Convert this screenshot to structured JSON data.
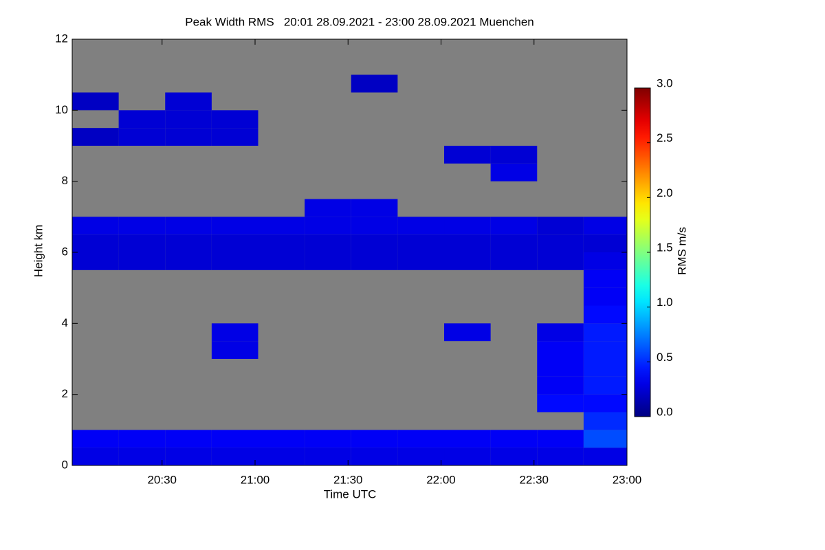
{
  "chart_data": {
    "type": "heatmap",
    "title": "Peak Width RMS   20:01 28.09.2021 - 23:00 28.09.2021 Muenchen",
    "x_label": "Time UTC",
    "y_label": "Height km",
    "colorbar_label": "RMS m/s",
    "xlim": [
      "20:01",
      "23:00"
    ],
    "xticks": [
      "20:30",
      "21:00",
      "21:30",
      "22:00",
      "22:30",
      "23:00"
    ],
    "ylim": [
      0,
      12
    ],
    "yticks": [
      0,
      2,
      4,
      6,
      8,
      10,
      12
    ],
    "zlim": [
      0,
      3
    ],
    "zticks": [
      {
        "value": 0,
        "label": "0.0"
      },
      {
        "value": 0.5,
        "label": "0.5"
      },
      {
        "value": 1,
        "label": "1.0"
      },
      {
        "value": 1.5,
        "label": "1.5"
      },
      {
        "value": 2,
        "label": "2.0"
      },
      {
        "value": 2.5,
        "label": "2.5"
      },
      {
        "value": 3,
        "label": "3.0"
      }
    ],
    "colormap": "jet",
    "nodata_color": "#808080",
    "x_edges": [
      "20:01",
      "20:16",
      "20:31",
      "20:46",
      "21:01",
      "21:16",
      "21:31",
      "21:46",
      "22:01",
      "22:16",
      "22:31",
      "22:46",
      "23:00"
    ],
    "y_edges": [
      0,
      0.5,
      1,
      1.5,
      2,
      2.5,
      3,
      3.5,
      4,
      4.5,
      5,
      5.5,
      6,
      6.5,
      7,
      7.5,
      8,
      8.5,
      9,
      9.5,
      10,
      10.5,
      11,
      11.5,
      12
    ],
    "z": [
      [
        0.3,
        0.3,
        0.3,
        0.3,
        0.3,
        0.3,
        0.3,
        0.3,
        0.3,
        0.3,
        0.3,
        0.3
      ],
      [
        0.35,
        0.35,
        0.35,
        0.35,
        0.35,
        0.35,
        0.35,
        0.35,
        0.35,
        0.35,
        0.35,
        0.6
      ],
      [
        null,
        null,
        null,
        null,
        null,
        null,
        null,
        null,
        null,
        null,
        null,
        0.5
      ],
      [
        null,
        null,
        null,
        null,
        null,
        null,
        null,
        null,
        null,
        null,
        0.4,
        0.4
      ],
      [
        null,
        null,
        null,
        null,
        null,
        null,
        null,
        null,
        null,
        null,
        0.35,
        0.45
      ],
      [
        null,
        null,
        null,
        null,
        null,
        null,
        null,
        null,
        null,
        null,
        0.35,
        0.45
      ],
      [
        null,
        null,
        null,
        0.3,
        null,
        null,
        null,
        null,
        null,
        null,
        0.35,
        0.45
      ],
      [
        null,
        null,
        null,
        0.3,
        null,
        null,
        null,
        null,
        0.3,
        null,
        0.3,
        0.45
      ],
      [
        null,
        null,
        null,
        null,
        null,
        null,
        null,
        null,
        null,
        null,
        null,
        0.4
      ],
      [
        null,
        null,
        null,
        null,
        null,
        null,
        null,
        null,
        null,
        null,
        null,
        0.35
      ],
      [
        null,
        null,
        null,
        null,
        null,
        null,
        null,
        null,
        null,
        null,
        null,
        0.35
      ],
      [
        0.25,
        0.25,
        0.25,
        0.25,
        0.25,
        0.25,
        0.25,
        0.25,
        0.25,
        0.25,
        0.25,
        0.3
      ],
      [
        0.25,
        0.25,
        0.25,
        0.25,
        0.25,
        0.25,
        0.25,
        0.25,
        0.25,
        0.25,
        0.25,
        0.25
      ],
      [
        0.3,
        0.3,
        0.3,
        0.3,
        0.3,
        0.3,
        0.3,
        0.3,
        0.3,
        0.3,
        0.25,
        0.3
      ],
      [
        null,
        null,
        null,
        null,
        null,
        0.3,
        0.3,
        null,
        null,
        null,
        null,
        null
      ],
      [
        null,
        null,
        null,
        null,
        null,
        null,
        null,
        null,
        null,
        null,
        null,
        null
      ],
      [
        null,
        null,
        null,
        null,
        null,
        null,
        null,
        null,
        null,
        0.3,
        null,
        null
      ],
      [
        null,
        null,
        null,
        null,
        null,
        null,
        null,
        null,
        0.25,
        0.25,
        null,
        null
      ],
      [
        0.2,
        0.25,
        0.25,
        0.25,
        null,
        null,
        null,
        null,
        null,
        null,
        null,
        null
      ],
      [
        null,
        0.25,
        0.25,
        0.25,
        null,
        null,
        null,
        null,
        null,
        null,
        null,
        null
      ],
      [
        0.2,
        null,
        0.25,
        null,
        null,
        null,
        null,
        null,
        null,
        null,
        null,
        null
      ],
      [
        null,
        null,
        null,
        null,
        null,
        null,
        0.2,
        null,
        null,
        null,
        null,
        null
      ],
      [
        null,
        null,
        null,
        null,
        null,
        null,
        null,
        null,
        null,
        null,
        null,
        null
      ],
      [
        null,
        null,
        null,
        null,
        null,
        null,
        null,
        null,
        null,
        null,
        null,
        null
      ]
    ]
  }
}
